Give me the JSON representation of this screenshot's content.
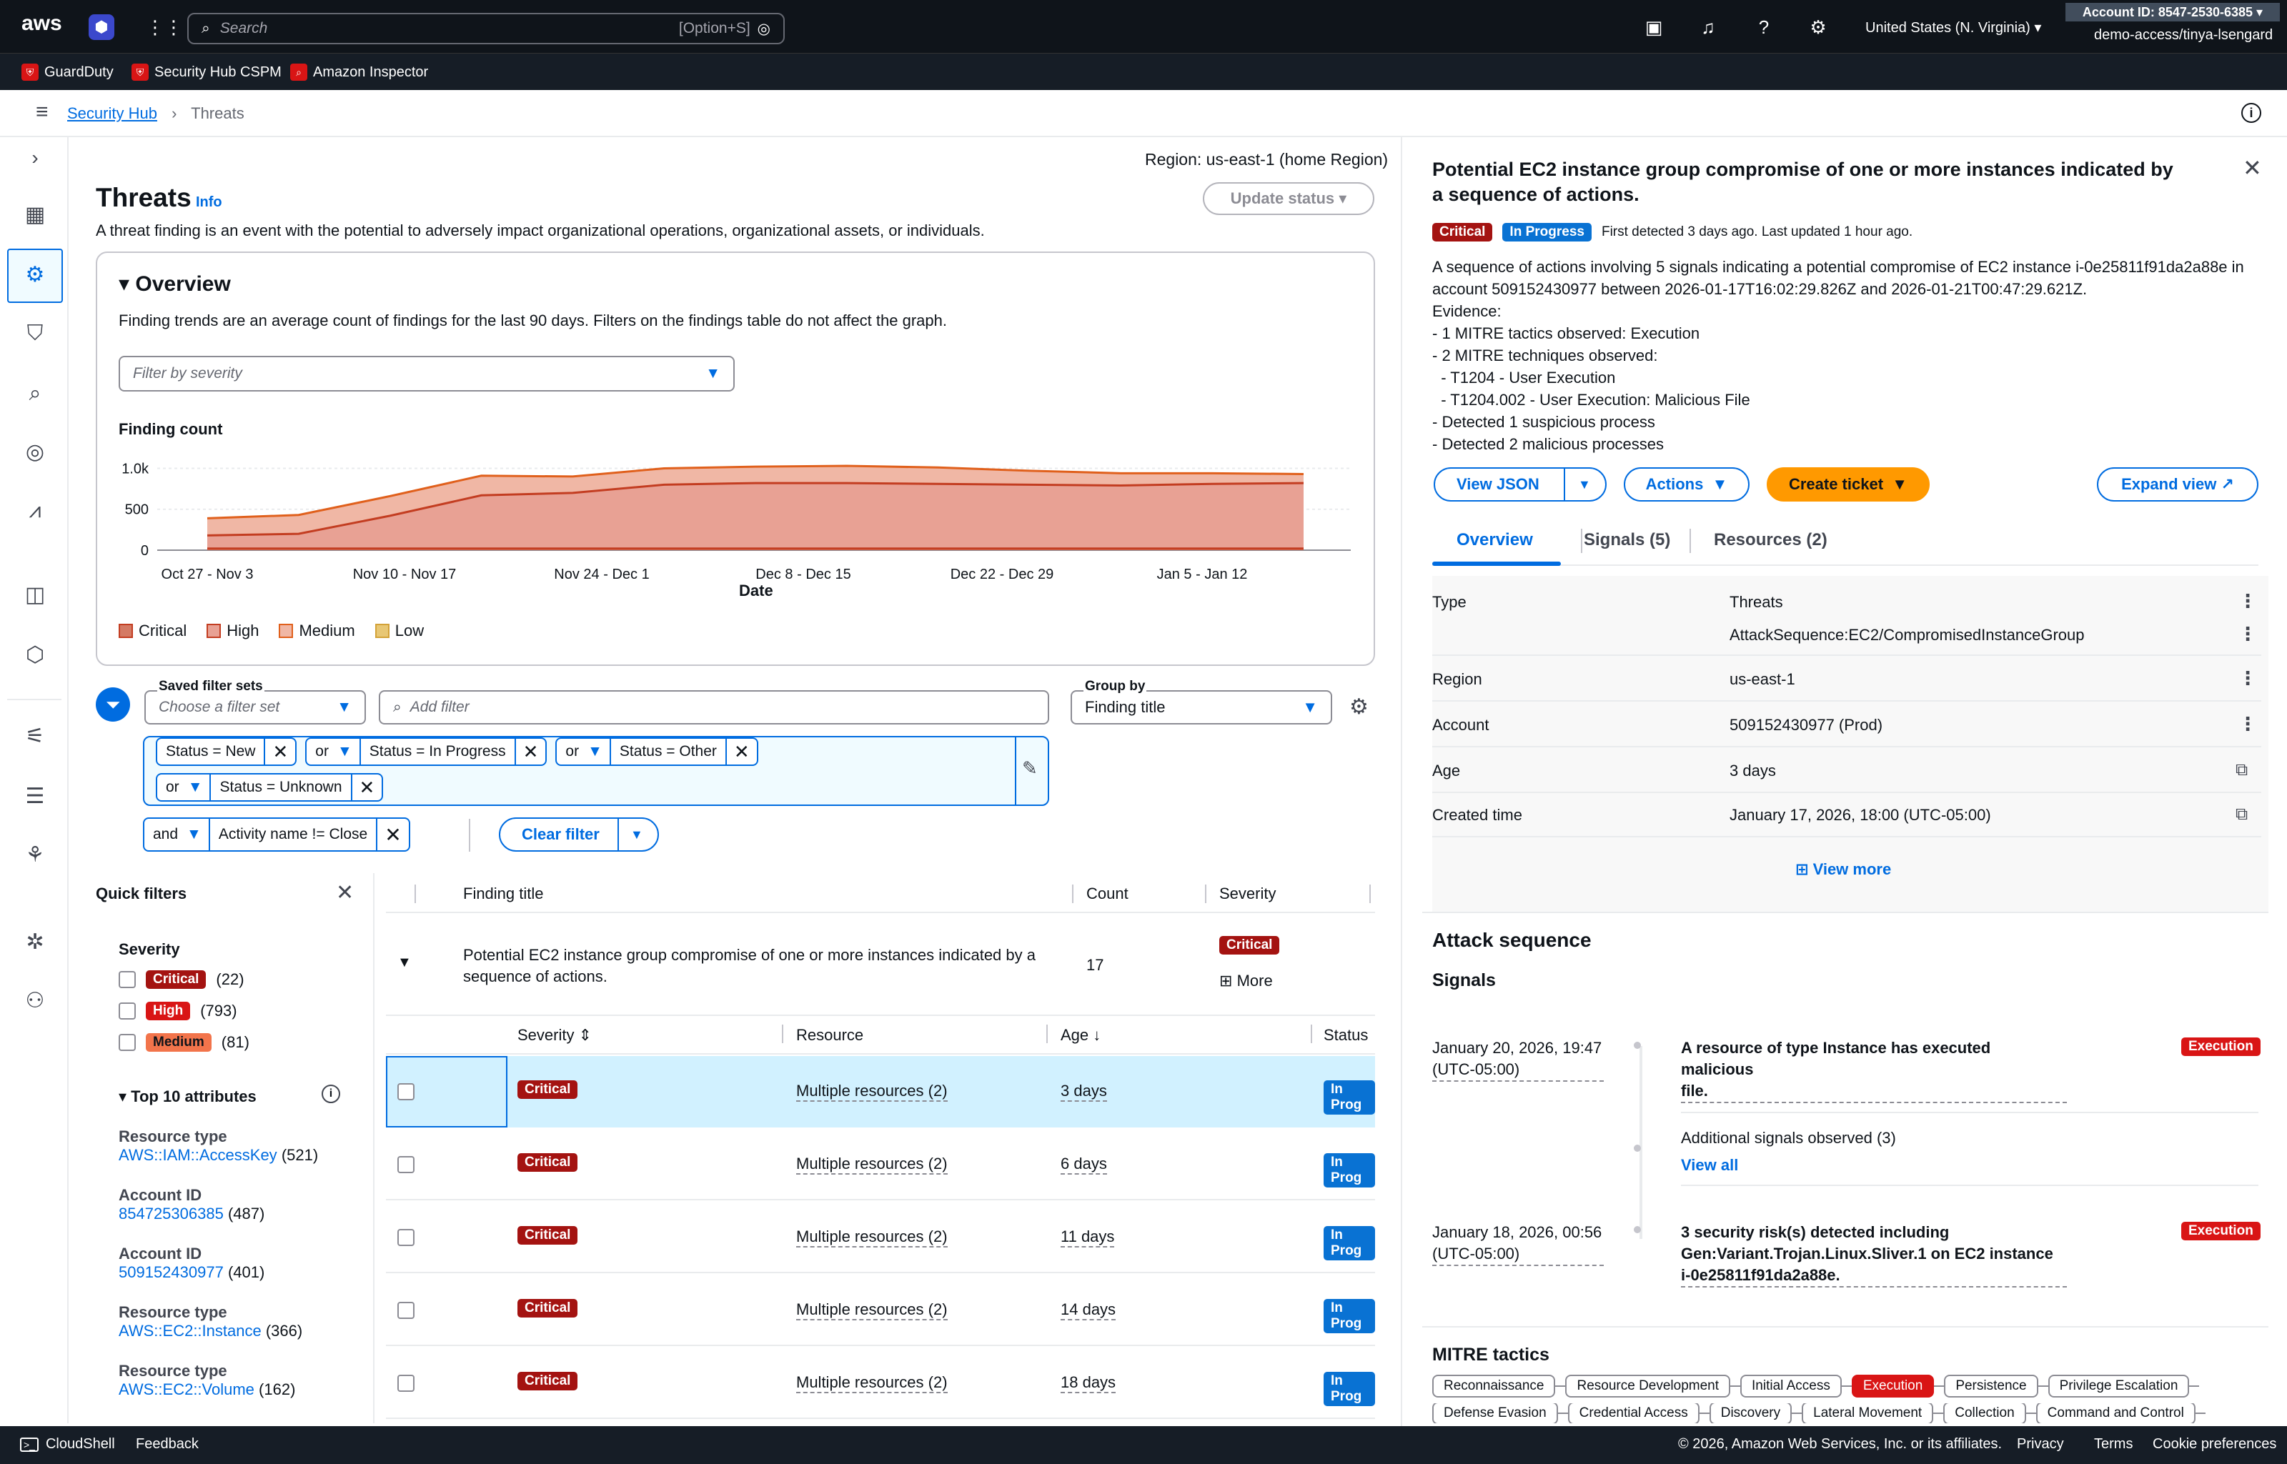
{
  "topnav": {
    "logo": "aws",
    "search_placeholder": "Search",
    "search_shortcut": "[Option+S]",
    "region": "United States (N. Virginia)",
    "account_id": "Account ID: 8547-2530-6385",
    "user": "demo-access/tinya-lsengard"
  },
  "favorites": [
    "GuardDuty",
    "Security Hub CSPM",
    "Amazon Inspector"
  ],
  "breadcrumb": {
    "root": "Security Hub",
    "current": "Threats"
  },
  "page": {
    "region_label": "Region:",
    "region_value": "us-east-1 (home Region)",
    "update_status": "Update status",
    "title": "Threats",
    "info": "Info",
    "description": "A threat finding is an event with the potential to adversely impact organizational operations, organizational assets, or individuals."
  },
  "overview": {
    "title": "Overview",
    "note": "Finding trends are an average count of findings for the last 90 days. Filters on the findings table do not affect the graph.",
    "filter_placeholder": "Filter by severity"
  },
  "chart_data": {
    "type": "area",
    "title": "Finding count",
    "xlabel": "Date",
    "ylabel": "",
    "ylim": [
      0,
      1000
    ],
    "yticks": [
      "0",
      "500",
      "1.0k"
    ],
    "categories": [
      "Oct 27 - Nov 3",
      "Nov 10 - Nov 17",
      "Nov 24 - Dec 1",
      "Dec 8 - Dec 15",
      "Dec 22 - Dec 29",
      "Jan 5 - Jan 12"
    ],
    "x": [
      0,
      1,
      2,
      3,
      4,
      5,
      6,
      7,
      8,
      9,
      10,
      11,
      12
    ],
    "series": [
      {
        "name": "Critical",
        "values": [
          20,
          20,
          20,
          20,
          20,
          20,
          20,
          20,
          20,
          20,
          20,
          20,
          20
        ]
      },
      {
        "name": "High",
        "values": [
          160,
          180,
          400,
          650,
          680,
          780,
          800,
          800,
          790,
          780,
          770,
          790,
          800
        ]
      },
      {
        "name": "Medium",
        "values": [
          210,
          230,
          240,
          240,
          200,
          200,
          200,
          210,
          200,
          170,
          150,
          130,
          110
        ]
      },
      {
        "name": "Low",
        "values": [
          0,
          0,
          0,
          0,
          0,
          0,
          0,
          0,
          0,
          0,
          0,
          0,
          0
        ]
      }
    ],
    "legend": [
      "Critical",
      "High",
      "Medium",
      "Low"
    ],
    "legend_position": "bottom-left",
    "grid": true
  },
  "filters": {
    "saved_label": "Saved filter sets",
    "saved_placeholder": "Choose a filter set",
    "add_placeholder": "Add filter",
    "group_by_label": "Group by",
    "group_by_value": "Finding title",
    "tokens": [
      {
        "op": "",
        "text": "Status = New"
      },
      {
        "op": "or",
        "text": "Status = In Progress"
      },
      {
        "op": "or",
        "text": "Status = Other"
      },
      {
        "op": "or",
        "text": "Status = Unknown"
      }
    ],
    "and_op": "and",
    "and_token": "Activity name != Close",
    "clear": "Clear filter"
  },
  "quick_filters": {
    "title": "Quick filters",
    "severity_heading": "Severity",
    "severity": [
      {
        "label": "Critical",
        "count": "(22)"
      },
      {
        "label": "High",
        "count": "(793)"
      },
      {
        "label": "Medium",
        "count": "(81)"
      }
    ],
    "attr_heading": "Top 10 attributes",
    "attrs": [
      {
        "name": "Resource type",
        "value": "AWS::IAM::AccessKey",
        "count": "(521)"
      },
      {
        "name": "Account ID",
        "value": "854725306385",
        "count": "(487)"
      },
      {
        "name": "Account ID",
        "value": "509152430977",
        "count": "(401)"
      },
      {
        "name": "Resource type",
        "value": "AWS::EC2::Instance",
        "count": "(366)"
      },
      {
        "name": "Resource type",
        "value": "AWS::EC2::Volume",
        "count": "(162)"
      }
    ]
  },
  "table": {
    "headers": [
      "Finding title",
      "Count",
      "Severity"
    ],
    "group": {
      "title": "Potential EC2 instance group compromise of one or more instances indicated by a sequence of actions.",
      "count": "17",
      "severity": "Critical",
      "more": "More"
    },
    "sub_headers": [
      "Severity",
      "Resource",
      "Age",
      "Status"
    ],
    "rows": [
      {
        "severity": "Critical",
        "resource": "Multiple resources (2)",
        "age": "3 days",
        "status": "In Prog"
      },
      {
        "severity": "Critical",
        "resource": "Multiple resources (2)",
        "age": "6 days",
        "status": "In Prog"
      },
      {
        "severity": "Critical",
        "resource": "Multiple resources (2)",
        "age": "11 days",
        "status": "In Prog"
      },
      {
        "severity": "Critical",
        "resource": "Multiple resources (2)",
        "age": "14 days",
        "status": "In Prog"
      },
      {
        "severity": "Critical",
        "resource": "Multiple resources (2)",
        "age": "18 days",
        "status": "In Prog"
      }
    ]
  },
  "detail": {
    "title": "Potential EC2 instance group compromise of one or more instances indicated by a sequence of actions.",
    "severity": "Critical",
    "status": "In Progress",
    "meta": "First detected 3 days ago. Last updated 1 hour ago.",
    "desc_lines": [
      "A sequence of actions involving 5 signals indicating a potential compromise of EC2 instance i-0e25811f91da2a88e in",
      "account 509152430977 between 2026-01-17T16:02:29.826Z and 2026-01-21T00:47:29.621Z.",
      "Evidence:",
      "- 1 MITRE tactics observed: Execution",
      "- 2 MITRE techniques observed:",
      "  - T1204 - User Execution",
      "  - T1204.002 - User Execution: Malicious File",
      "- Detected 1 suspicious process",
      "- Detected 2 malicious processes"
    ],
    "btn_json": "View JSON",
    "btn_actions": "Actions",
    "btn_ticket": "Create ticket",
    "btn_expand": "Expand view",
    "tabs": [
      "Overview",
      "Signals (5)",
      "Resources (2)"
    ],
    "props": [
      {
        "key": "Type",
        "value": "Threats"
      },
      {
        "key": "",
        "value": "AttackSequence:EC2/CompromisedInstanceGroup"
      },
      {
        "key": "Region",
        "value": "us-east-1"
      },
      {
        "key": "Account",
        "value": "509152430977 (Prod)"
      },
      {
        "key": "Age",
        "value": "3 days"
      },
      {
        "key": "Created time",
        "value": "January 17, 2026, 18:00 (UTC-05:00)"
      }
    ],
    "view_more": "View more",
    "attack_heading": "Attack sequence",
    "signals_heading": "Signals",
    "signals": [
      {
        "date": "January 20, 2026, 19:47",
        "tz": "(UTC-05:00)",
        "text1": "A resource of type Instance has executed malicious",
        "text2": "file.",
        "text3": "",
        "tag": "Execution"
      },
      {
        "date": "January 18, 2026, 00:56",
        "tz": "(UTC-05:00)",
        "text1": "3 security risk(s) detected including",
        "text2": "Gen:Variant.Trojan.Linux.Sliver.1 on EC2 instance",
        "text3": "i-0e25811f91da2a88e.",
        "tag": "Execution"
      }
    ],
    "additional": "Additional signals observed (3)",
    "view_all": "View all",
    "mitre_heading": "MITRE tactics",
    "tactics_row1": [
      "Reconnaissance",
      "Resource Development",
      "Initial Access",
      "Execution",
      "Persistence",
      "Privilege Escalation"
    ],
    "tactics_row2": [
      "Defense Evasion",
      "Credential Access",
      "Discovery",
      "Lateral Movement",
      "Collection",
      "Command and Control"
    ],
    "active_tactic": "Execution"
  },
  "footer": {
    "cloudshell": "CloudShell",
    "feedback": "Feedback",
    "copyright": "© 2026, Amazon Web Services, Inc. or its affiliates.",
    "privacy": "Privacy",
    "terms": "Terms",
    "cookies": "Cookie preferences"
  }
}
